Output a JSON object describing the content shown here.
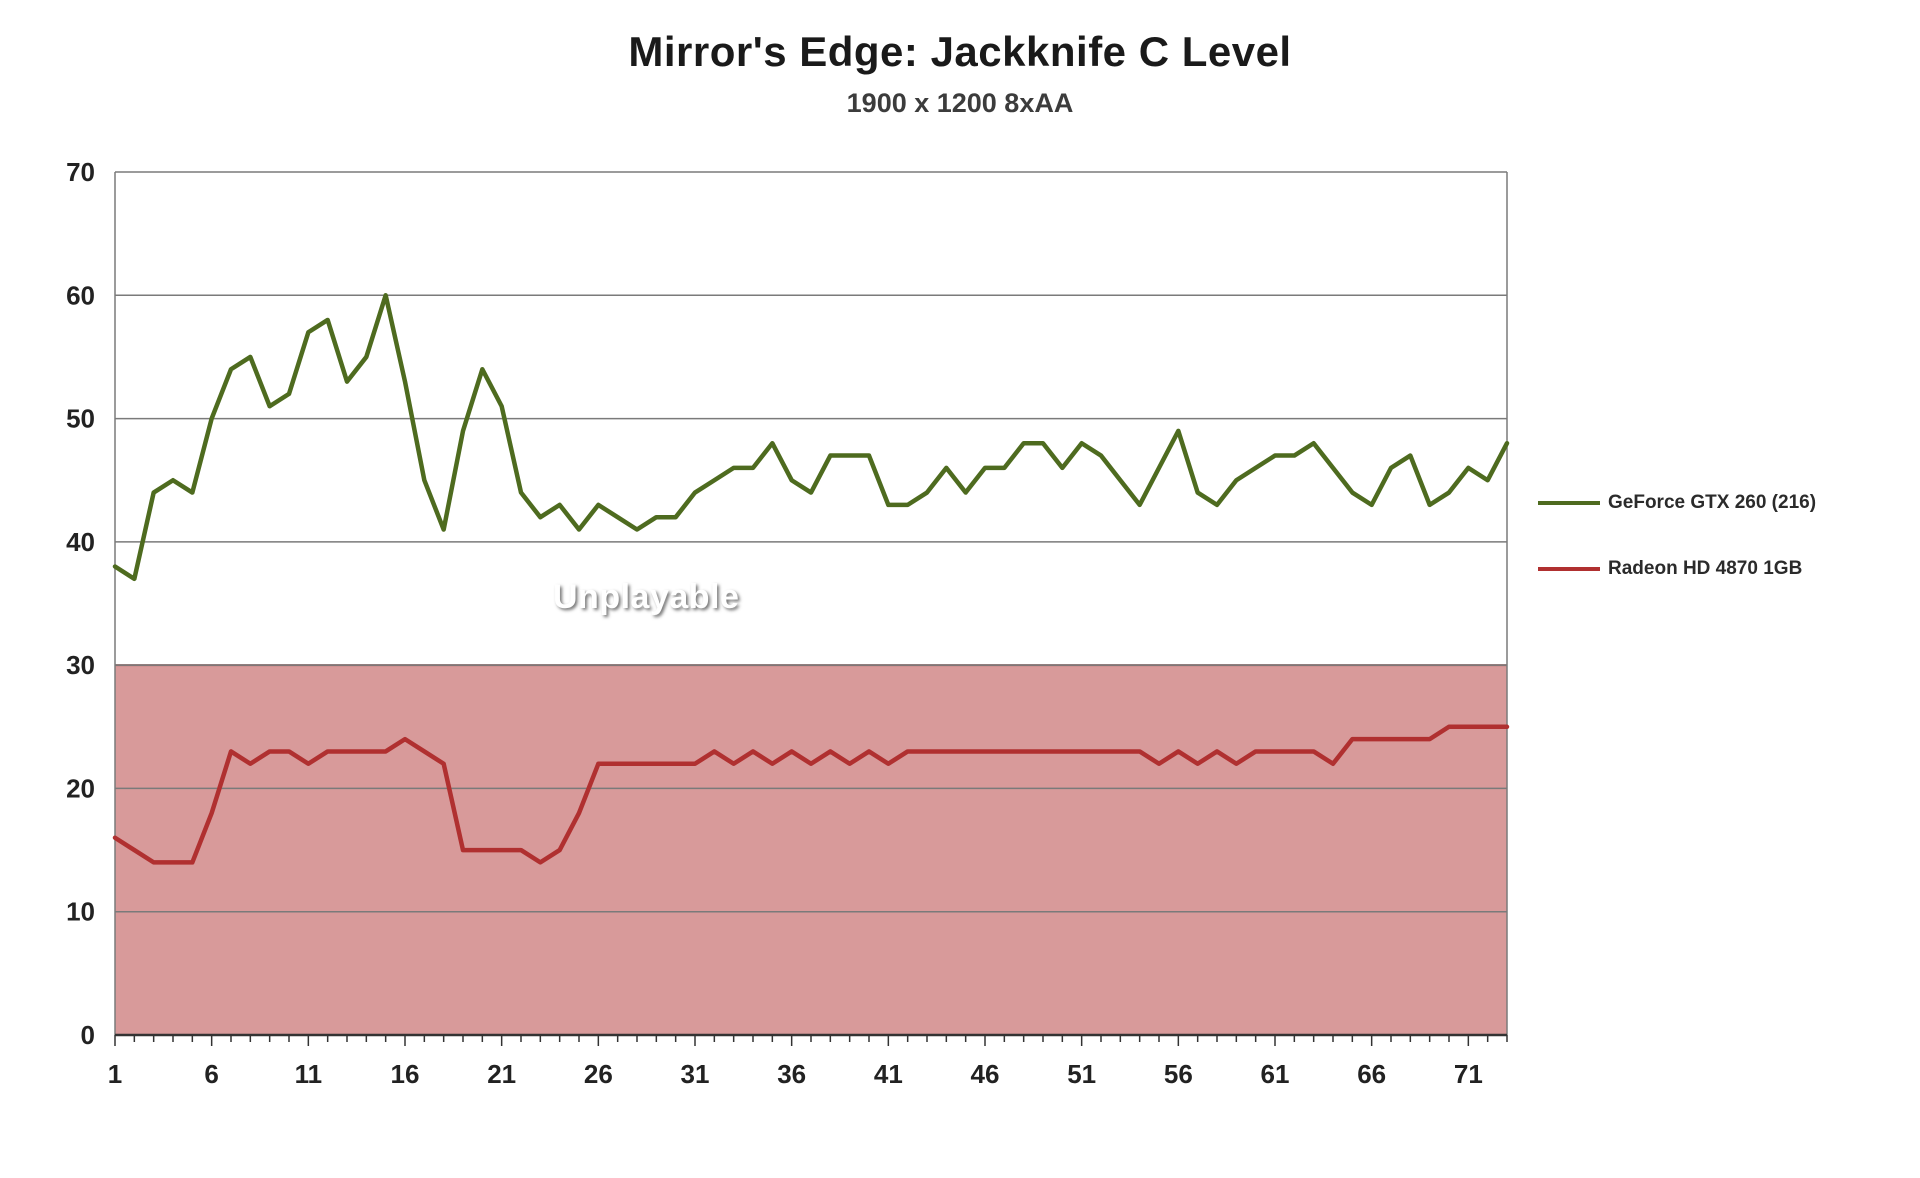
{
  "chart_data": {
    "type": "line",
    "title": "Mirror's Edge: Jackknife C Level",
    "subtitle": "1900 x 1200 8xAA",
    "xlabel": "",
    "ylabel": "",
    "ylim": [
      0,
      70
    ],
    "y_ticks": [
      0,
      10,
      20,
      30,
      40,
      50,
      60,
      70
    ],
    "x_tick_labels": [
      1,
      6,
      11,
      16,
      21,
      26,
      31,
      36,
      41,
      46,
      51,
      56,
      61,
      66,
      71
    ],
    "n_points": 73,
    "grid": true,
    "legend_position": "right",
    "colors": {
      "green_series": "#4e6b1f",
      "red_series": "#b03030",
      "unplayable_region_fill": "#d89a9a",
      "grid_line": "#7a7a7a",
      "axis_line": "#333333",
      "tick_label": "#222222"
    },
    "series": [
      {
        "name": "GeForce GTX 260 (216)",
        "color": "#4e6b1f",
        "values": [
          38,
          37,
          44,
          45,
          44,
          50,
          54,
          55,
          51,
          52,
          57,
          58,
          53,
          55,
          60,
          53,
          45,
          41,
          49,
          54,
          51,
          44,
          42,
          43,
          41,
          43,
          42,
          41,
          42,
          42,
          44,
          45,
          46,
          46,
          48,
          45,
          44,
          47,
          47,
          47,
          43,
          43,
          44,
          46,
          44,
          46,
          46,
          48,
          48,
          46,
          48,
          47,
          45,
          43,
          46,
          49,
          44,
          43,
          45,
          46,
          47,
          47,
          48,
          46,
          44,
          43,
          46,
          47,
          43,
          44,
          46,
          45,
          48
        ]
      },
      {
        "name": "Radeon HD 4870 1GB",
        "color": "#b03030",
        "values": [
          16,
          15,
          14,
          14,
          14,
          18,
          23,
          22,
          23,
          23,
          22,
          23,
          23,
          23,
          23,
          24,
          23,
          22,
          15,
          15,
          15,
          15,
          14,
          15,
          18,
          22,
          22,
          22,
          22,
          22,
          22,
          23,
          22,
          23,
          22,
          23,
          22,
          23,
          22,
          23,
          22,
          23,
          23,
          23,
          23,
          23,
          23,
          23,
          23,
          23,
          23,
          23,
          23,
          23,
          22,
          23,
          22,
          23,
          22,
          23,
          23,
          23,
          23,
          22,
          24,
          24,
          24,
          24,
          24,
          25,
          25,
          25,
          25
        ]
      }
    ],
    "annotations": [
      {
        "text": "Unplayable",
        "region_ymin": 0,
        "region_ymax": 30
      }
    ]
  }
}
